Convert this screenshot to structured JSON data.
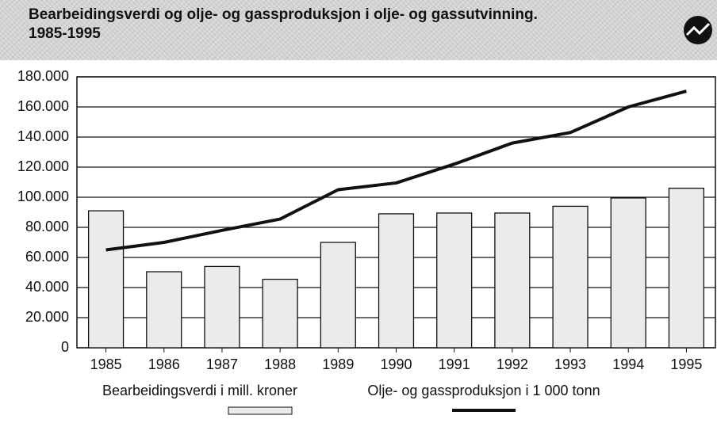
{
  "chart_data": {
    "type": "bar",
    "title": [
      "Bearbeidingsverdi og olje- og gassproduksjon i olje- og gassutvinning.",
      "1985-1995"
    ],
    "categories": [
      "1985",
      "1986",
      "1987",
      "1988",
      "1989",
      "1990",
      "1991",
      "1992",
      "1993",
      "1994",
      "1995"
    ],
    "series": [
      {
        "name": "Bearbeidingsverdi i mill. kroner",
        "type": "bar",
        "color": "#ebebeb",
        "values": [
          91000,
          50500,
          54000,
          45500,
          70000,
          89000,
          89500,
          89500,
          94000,
          99500,
          106000
        ]
      },
      {
        "name": "Olje- og gassproduksjon i 1 000 tonn",
        "type": "line",
        "color": "#111111",
        "values": [
          65000,
          70000,
          78000,
          85500,
          105000,
          109500,
          122000,
          136000,
          143000,
          160000,
          170500
        ]
      }
    ],
    "ylim": [
      0,
      180000
    ],
    "yticks": [
      0,
      {
        "value": 20000,
        "label": "20.000"
      },
      {
        "value": 40000,
        "label": "40.000"
      },
      {
        "value": 60000,
        "label": "60.000"
      },
      {
        "value": 80000,
        "label": "80.000"
      },
      {
        "value": 100000,
        "label": "100.000"
      },
      {
        "value": 120000,
        "label": "120.000"
      },
      {
        "value": 140000,
        "label": "140.000"
      },
      {
        "value": 160000,
        "label": "160.000"
      },
      {
        "value": 180000,
        "label": "180.000"
      }
    ],
    "grid": true,
    "legend": "bottom"
  }
}
